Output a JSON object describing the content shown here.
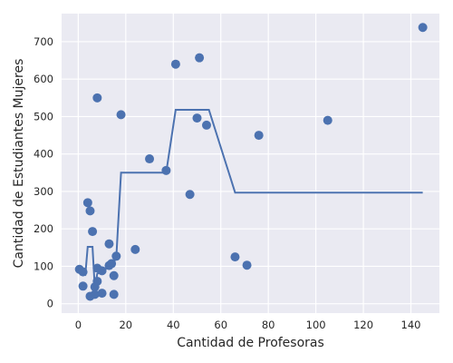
{
  "chart_data": {
    "type": "scatter",
    "xlabel": "Cantidad de Profesoras",
    "ylabel": "Cantidad de Estudiantes Mujeres",
    "xlim": [
      -7,
      152
    ],
    "ylim": [
      -25,
      775
    ],
    "xticks": [
      0,
      20,
      40,
      60,
      80,
      100,
      120,
      140
    ],
    "yticks": [
      0,
      100,
      200,
      300,
      400,
      500,
      600,
      700
    ],
    "grid": true,
    "colors": {
      "background": "#eaeaf2",
      "grid": "#ffffff",
      "series": "#4c72b0"
    },
    "series": [
      {
        "type": "scatter",
        "points": [
          [
            0.5,
            92
          ],
          [
            2,
            85
          ],
          [
            2,
            47
          ],
          [
            4,
            270
          ],
          [
            5,
            248
          ],
          [
            5,
            20
          ],
          [
            6,
            193
          ],
          [
            7,
            25
          ],
          [
            7,
            45
          ],
          [
            8,
            550
          ],
          [
            8,
            60
          ],
          [
            8,
            95
          ],
          [
            10,
            88
          ],
          [
            10,
            28
          ],
          [
            13,
            160
          ],
          [
            13,
            102
          ],
          [
            14,
            107
          ],
          [
            15,
            75
          ],
          [
            15,
            25
          ],
          [
            16,
            127
          ],
          [
            18,
            505
          ],
          [
            24,
            145
          ],
          [
            30,
            387
          ],
          [
            37,
            356
          ],
          [
            41,
            640
          ],
          [
            47,
            292
          ],
          [
            50,
            496
          ],
          [
            51,
            657
          ],
          [
            54,
            477
          ],
          [
            66,
            125
          ],
          [
            71,
            103
          ],
          [
            76,
            450
          ],
          [
            105,
            490
          ],
          [
            145,
            738
          ]
        ]
      },
      {
        "type": "line",
        "points": [
          [
            0.5,
            90
          ],
          [
            3,
            78
          ],
          [
            4,
            152
          ],
          [
            6,
            152
          ],
          [
            7,
            40
          ],
          [
            8,
            80
          ],
          [
            14,
            102
          ],
          [
            16,
            122
          ],
          [
            18,
            350
          ],
          [
            37,
            350
          ],
          [
            41,
            518
          ],
          [
            55,
            518
          ],
          [
            66,
            297
          ],
          [
            145,
            297
          ]
        ]
      }
    ]
  }
}
